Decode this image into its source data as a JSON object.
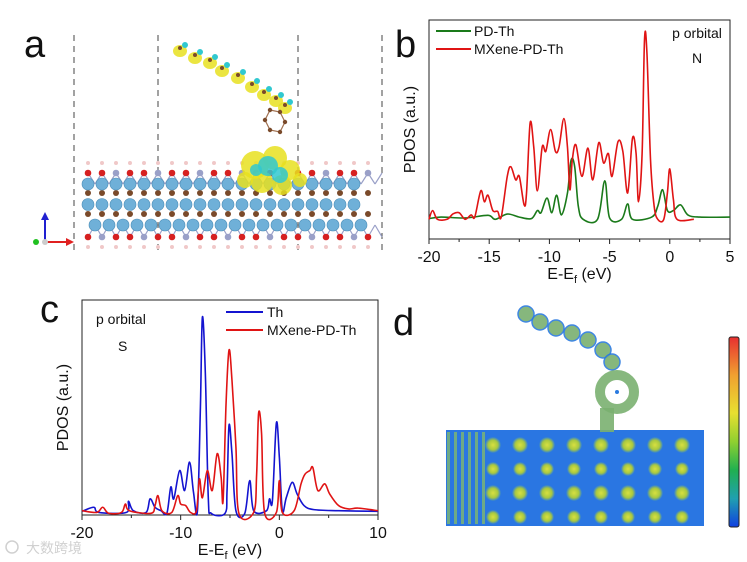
{
  "panels": {
    "a": "a",
    "b": "b",
    "c": "c",
    "d": "d"
  },
  "watermark": "大数跨境",
  "colors": {
    "green": "#1a7a1a",
    "red": "#e01414",
    "blue": "#1414d0",
    "atom_ti": "#6fb0d8",
    "atom_c": "#7a4a2a",
    "atom_o": "#d62020",
    "iso_yellow": "#e8e020",
    "iso_cyan": "#30c8d0"
  },
  "chart_data": [
    {
      "id": "b",
      "type": "line",
      "title": "",
      "xlabel": "E-E",
      "xlabel_sub": "f",
      "xlabel_unit": " (eV)",
      "ylabel": "PDOS (a.u.)",
      "xlim": [
        -20,
        5
      ],
      "ylim": [
        0,
        100
      ],
      "xticks": [
        -20,
        -15,
        -10,
        -5,
        0,
        5
      ],
      "xtick_labels": [
        "-20",
        "-15",
        "-10",
        "-5",
        "0",
        "5"
      ],
      "annotations": [
        "p orbital",
        "N"
      ],
      "legend": "top-left",
      "series": [
        {
          "name": "PD-Th",
          "color": "#1a7a1a",
          "x": [
            -20,
            -19,
            -17,
            -15.1,
            -14.5,
            -13.5,
            -12.5,
            -11.5,
            -11,
            -10.7,
            -10.2,
            -9.8,
            -9.4,
            -9,
            -8.5,
            -8.2,
            -7.9,
            -7.6,
            -7.2,
            -6,
            -5.4,
            -5,
            -4,
            -3.5,
            -3.1,
            -1.5,
            -1,
            -0.6,
            -0.2,
            0.3,
            0.9,
            1.5,
            2.5,
            5
          ],
          "y": [
            9.3,
            10,
            9.6,
            10.8,
            9,
            11.4,
            10,
            9.3,
            13,
            12,
            18.7,
            12,
            20,
            11,
            21,
            36,
            33,
            15,
            9,
            9,
            26.6,
            9.6,
            9,
            16,
            9,
            10,
            15,
            22.5,
            13,
            13,
            15.6,
            11,
            10,
            10
          ]
        },
        {
          "name": "MXene-PD-Th",
          "color": "#e01414",
          "x": [
            -20,
            -19.7,
            -19.3,
            -18.5,
            -18,
            -17.5,
            -17,
            -16.5,
            -16.2,
            -15.7,
            -15.4,
            -15.1,
            -14.7,
            -14.3,
            -14,
            -13.5,
            -13.2,
            -12.8,
            -12.5,
            -12.1,
            -11.9,
            -11.6,
            -11.3,
            -11,
            -10.6,
            -10.3,
            -9.9,
            -9.5,
            -9.2,
            -8.8,
            -8.5,
            -8.3,
            -8.1,
            -7.8,
            -7.3,
            -6.8,
            -6.4,
            -5.9,
            -5.5,
            -5.1,
            -4.8,
            -4.3,
            -3.9,
            -3.5,
            -3.1,
            -2.8,
            -2.6,
            -2.3,
            -2.1,
            -1.9,
            -1.6,
            -1.3,
            -1,
            -0.5,
            -0.2,
            0,
            0.3,
            0.6,
            2
          ],
          "y": [
            9,
            13,
            9,
            9,
            11.5,
            12,
            9,
            11,
            10,
            22,
            17,
            20,
            13,
            12.6,
            10,
            28.6,
            33,
            27,
            28.6,
            15.6,
            21,
            53,
            42,
            22,
            42,
            40,
            50,
            40,
            42,
            55,
            42,
            22.5,
            36,
            43,
            28.6,
            41.5,
            27,
            44,
            34.7,
            39,
            28.6,
            44.5,
            40,
            21,
            46,
            39,
            17,
            39,
            91,
            85,
            36,
            15,
            9,
            9,
            21,
            32,
            18,
            9,
            9
          ]
        }
      ]
    },
    {
      "id": "c",
      "type": "line",
      "title": "",
      "xlabel": "E-E",
      "xlabel_sub": "f",
      "xlabel_unit": " (eV)",
      "ylabel": "PDOS (a.u.)",
      "xlim": [
        -20,
        10
      ],
      "ylim": [
        0,
        100
      ],
      "xticks": [
        -20,
        -10,
        0,
        10
      ],
      "xtick_labels": [
        "-20",
        "-10",
        "0",
        "10"
      ],
      "annotations": [
        "p orbital",
        "S"
      ],
      "legend": "top-right",
      "series": [
        {
          "name": "Th",
          "color": "#1414d0",
          "x": [
            -20,
            -18.8,
            -18.3,
            -15.5,
            -15.3,
            -14.8,
            -13.5,
            -13.1,
            -12.6,
            -12,
            -11.4,
            -11,
            -10.7,
            -10.1,
            -9.6,
            -9.1,
            -8.7,
            -8.3,
            -8,
            -7.8,
            -7.5,
            -7.2,
            -6.9,
            -5.5,
            -5.3,
            -5.1,
            -4.8,
            -4.4,
            -3.5,
            -3,
            -2.6,
            -1.3,
            -1,
            -0.7,
            -0.3,
            0,
            0.3,
            0.7,
            1.3,
            1.8,
            2.5,
            3.5,
            6,
            10
          ],
          "y": [
            1.7,
            3.6,
            1.2,
            1.2,
            6.4,
            2,
            1.2,
            7.5,
            3.6,
            2,
            0.8,
            13,
            7.5,
            20.7,
            11.4,
            24.6,
            10.6,
            2,
            50,
            92,
            66,
            8,
            0.8,
            0.8,
            11.4,
            41.7,
            28.5,
            2,
            0.8,
            16,
            2,
            2,
            7.5,
            6.7,
            42.8,
            27,
            2,
            8,
            15.2,
            9.8,
            4.4,
            2.5,
            2,
            1.7
          ]
        },
        {
          "name": "MXene-PD-Th",
          "color": "#e01414",
          "x": [
            -20,
            -18.5,
            -17.9,
            -17.3,
            -16,
            -15.6,
            -15.2,
            -13,
            -12.6,
            -12.3,
            -11.9,
            -10.9,
            -10.3,
            -10,
            -9.5,
            -9,
            -8.4,
            -8.1,
            -7.8,
            -7.3,
            -6.8,
            -6.3,
            -5.9,
            -5.7,
            -5.4,
            -5.1,
            -4.8,
            -4.4,
            -4.1,
            -2.6,
            -2.3,
            -2.1,
            -1.8,
            -1.5,
            -0.3,
            0,
            0.3,
            1.5,
            2.2,
            2.6,
            3.1,
            3.4,
            3.9,
            4.6,
            5.1,
            6,
            7,
            8,
            10
          ],
          "y": [
            2,
            1.2,
            3.6,
            0.8,
            1.2,
            5.1,
            2,
            0.8,
            4.4,
            9,
            2,
            1.2,
            9,
            5.1,
            4.4,
            1.2,
            2,
            16.8,
            8,
            20.7,
            11.4,
            28.5,
            17.6,
            6.7,
            51.8,
            76.7,
            62.7,
            31.6,
            0.8,
            1.2,
            19,
            47.4,
            37.8,
            1.2,
            1.2,
            16,
            1.2,
            2,
            14.5,
            19,
            20.7,
            22,
            11.4,
            14.5,
            9.8,
            4.4,
            2.8,
            3.2,
            2
          ]
        }
      ]
    }
  ]
}
